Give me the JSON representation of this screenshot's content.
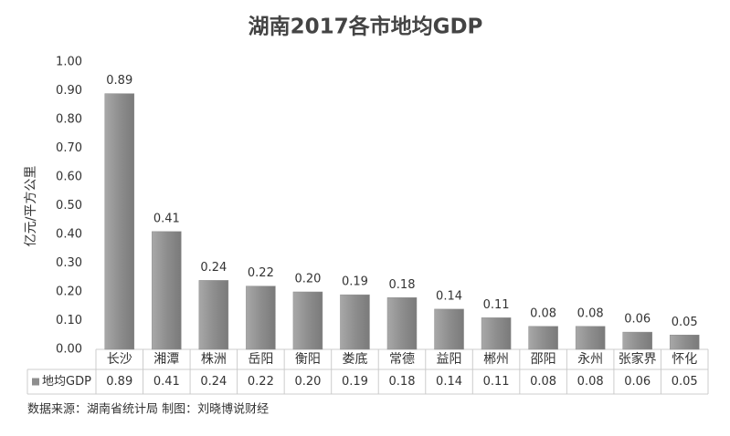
{
  "chart_data": {
    "type": "bar",
    "title": "湖南2017各市地均GDP",
    "y_label": "亿元/平方公里",
    "categories": [
      "长沙",
      "湘潭",
      "株洲",
      "岳阳",
      "衡阳",
      "娄底",
      "常德",
      "益阳",
      "郴州",
      "邵阳",
      "永州",
      "张家界",
      "怀化"
    ],
    "series": [
      {
        "name": "地均GDP",
        "color": "#8e8e8e",
        "values": [
          0.89,
          0.41,
          0.24,
          0.22,
          0.2,
          0.19,
          0.18,
          0.14,
          0.11,
          0.08,
          0.08,
          0.06,
          0.05
        ],
        "value_labels": [
          "0.89",
          "0.41",
          "0.24",
          "0.22",
          "0.20",
          "0.19",
          "0.18",
          "0.14",
          "0.11",
          "0.08",
          "0.08",
          "0.06",
          "0.05"
        ]
      }
    ],
    "ylim": [
      0,
      1
    ],
    "yticks": [
      {
        "value": 0,
        "label": "0.00"
      },
      {
        "value": 0.1,
        "label": "0.10"
      },
      {
        "value": 0.2,
        "label": "0.20"
      },
      {
        "value": 0.3,
        "label": "0.30"
      },
      {
        "value": 0.4,
        "label": "0.40"
      },
      {
        "value": 0.5,
        "label": "0.50"
      },
      {
        "value": 0.6,
        "label": "0.60"
      },
      {
        "value": 0.7,
        "label": "0.70"
      },
      {
        "value": 0.8,
        "label": "0.80"
      },
      {
        "value": 0.9,
        "label": "0.90"
      },
      {
        "value": 1,
        "label": "1.00"
      }
    ],
    "grid": false,
    "source": "数据来源：湖南省统计局 制图：刘晓博说财经"
  }
}
